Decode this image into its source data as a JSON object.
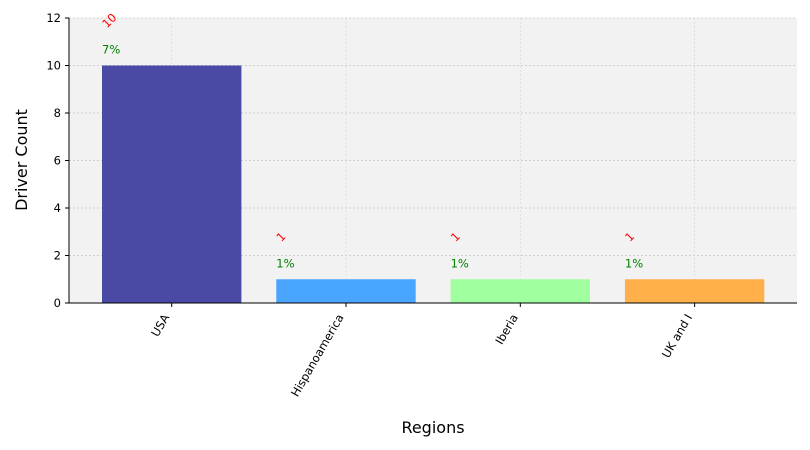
{
  "chart_data": {
    "type": "bar",
    "categories": [
      "USA",
      "Hispanoamerica",
      "Iberia",
      "UK and I"
    ],
    "values": [
      10,
      1,
      1,
      1
    ],
    "bar_colors": [
      "#4a4aa5",
      "#4aa5ff",
      "#a0ff9e",
      "#ffb04a"
    ],
    "count_labels": [
      "10",
      "1",
      "1",
      "1"
    ],
    "percent_labels": [
      "7%",
      "1%",
      "1%",
      "1%"
    ],
    "count_label_color": "#ff0000",
    "percent_label_color": "#008000",
    "xlabel": "Regions",
    "ylabel": "Driver Count",
    "ylim": [
      0,
      12
    ],
    "yticks": [
      0,
      2,
      4,
      6,
      8,
      10,
      12
    ],
    "grid": true,
    "plot_background": "#f2f2f2"
  }
}
